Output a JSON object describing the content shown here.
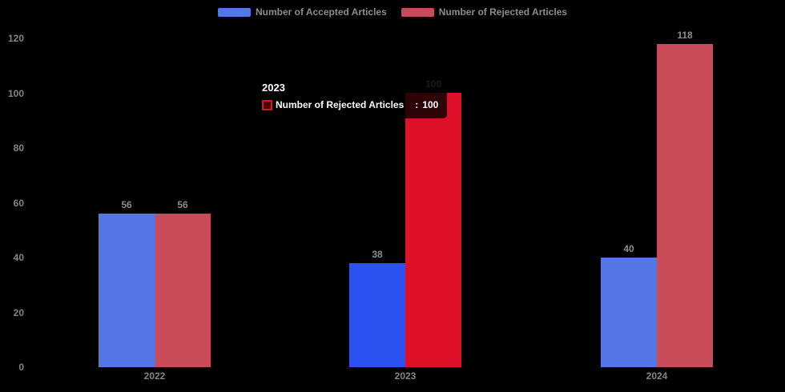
{
  "colors": {
    "background": "#000000",
    "axis_label": "#858585",
    "value_label": "#8c8c8c",
    "legend_text": "#8c8c8c",
    "tooltip_background": "rgba(0,0,0,0.8)",
    "tooltip_text": "#ffffff"
  },
  "legend": {
    "items": [
      {
        "label": "Number of Accepted Articles",
        "color": "#5577e6"
      },
      {
        "label": "Number of Rejected Articles",
        "color": "#c74b59"
      }
    ]
  },
  "chart_data": {
    "type": "bar",
    "title": "",
    "categories": [
      "2022",
      "2023",
      "2024"
    ],
    "series": [
      {
        "name": "Number of Accepted Articles",
        "values": [
          56,
          38,
          40
        ],
        "color": "#5577e6",
        "emphasis_color": "#2b52f0"
      },
      {
        "name": "Number of Rejected Articles",
        "values": [
          56,
          100,
          118
        ],
        "color": "#c74b59",
        "emphasis_color": "#de1128"
      }
    ],
    "highlighted_category_index": 1,
    "ylim": [
      0,
      120
    ],
    "yticks": [
      0,
      20,
      40,
      60,
      80,
      100,
      120
    ],
    "xlabel": "",
    "ylabel": "",
    "grid": "off",
    "legend_position": "top",
    "value_labels": "on"
  },
  "tooltip": {
    "title": "2023",
    "series_name": "Number of Rejected Articles",
    "separator": ":",
    "value": "100",
    "marker_color": "#de1128"
  }
}
